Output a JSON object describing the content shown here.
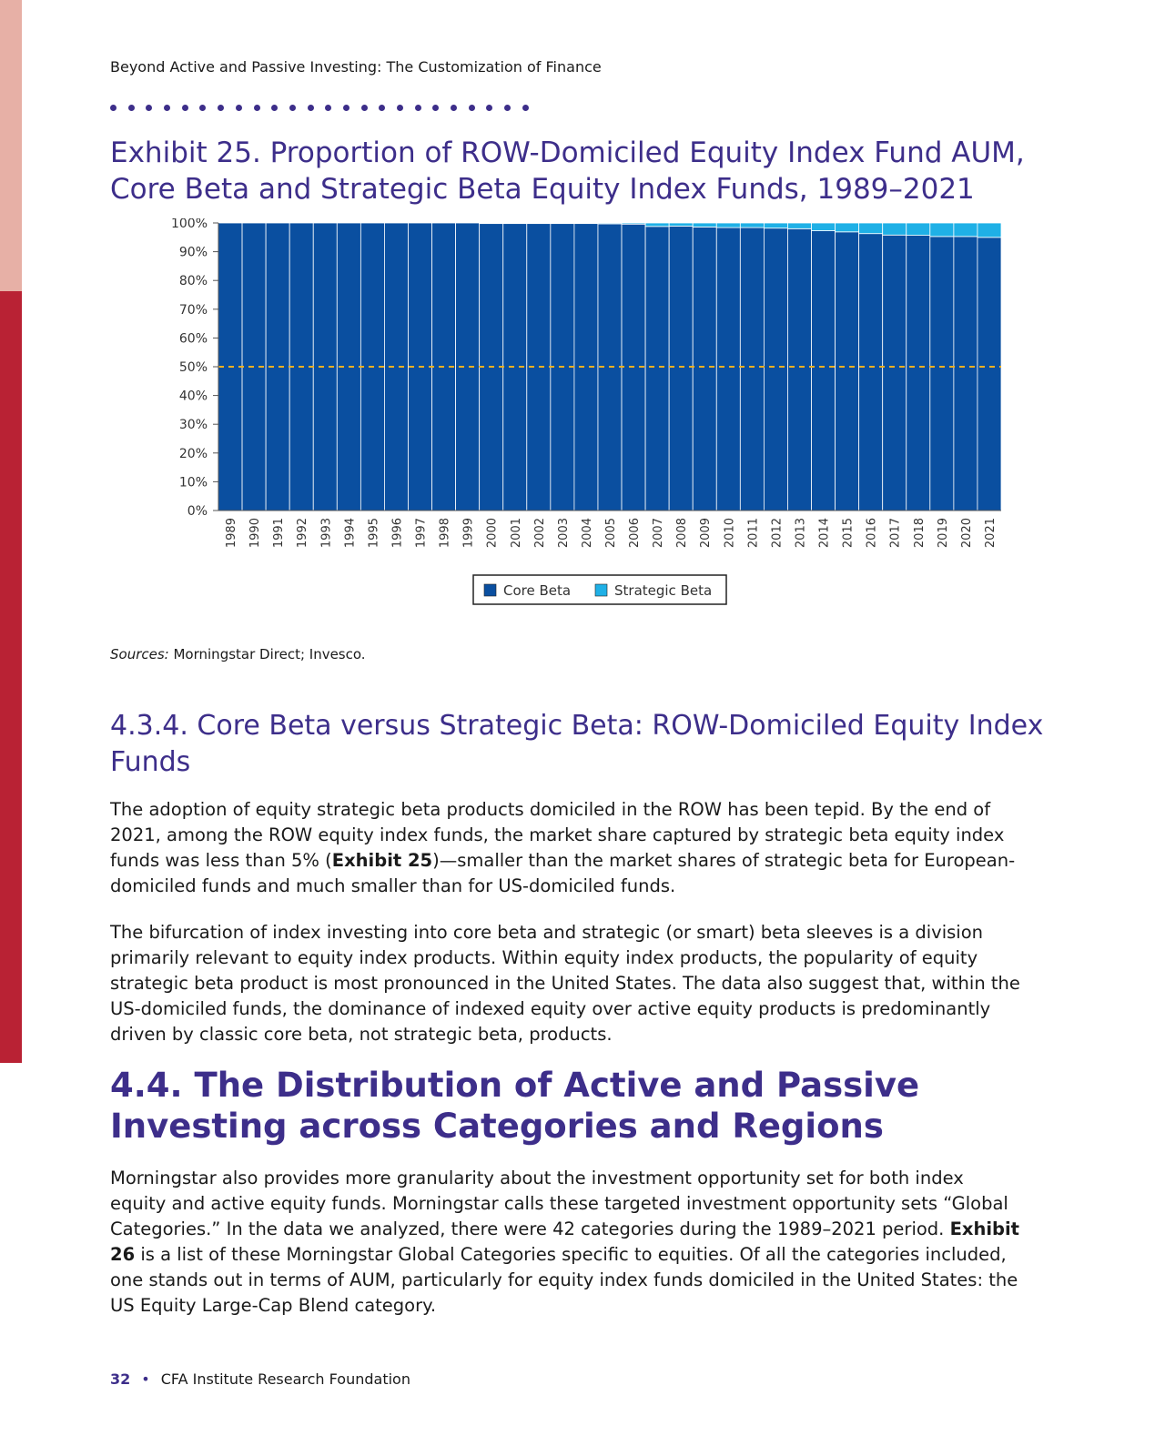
{
  "running_head": "Beyond Active and Passive Investing: The Customization of Finance",
  "exhibit_title": "Exhibit 25. Proportion of ROW-Domiciled Equity Index Fund AUM, Core Beta and Strategic Beta Equity Index Funds, 1989–2021",
  "chart_data": {
    "type": "bar",
    "stacked": true,
    "categories": [
      "1989",
      "1990",
      "1991",
      "1992",
      "1993",
      "1994",
      "1995",
      "1996",
      "1997",
      "1998",
      "1999",
      "2000",
      "2001",
      "2002",
      "2003",
      "2004",
      "2005",
      "2006",
      "2007",
      "2008",
      "2009",
      "2010",
      "2011",
      "2012",
      "2013",
      "2014",
      "2015",
      "2016",
      "2017",
      "2018",
      "2019",
      "2020",
      "2021"
    ],
    "series": [
      {
        "name": "Core Beta",
        "color": "#0a4fa0",
        "values": [
          100,
          100,
          100,
          100,
          100,
          100,
          100,
          100,
          100,
          100,
          100,
          99.8,
          99.8,
          99.8,
          99.8,
          99.8,
          99.7,
          99.6,
          98.8,
          98.9,
          98.6,
          98.4,
          98.4,
          98.2,
          98.0,
          97.3,
          96.9,
          96.3,
          95.8,
          95.7,
          95.3,
          95.3,
          95.0
        ]
      },
      {
        "name": "Strategic Beta",
        "color": "#1fb0e6",
        "values": [
          0,
          0,
          0,
          0,
          0,
          0,
          0,
          0,
          0,
          0,
          0,
          0.2,
          0.2,
          0.2,
          0.2,
          0.2,
          0.3,
          0.4,
          1.2,
          1.1,
          1.4,
          1.6,
          1.6,
          1.8,
          2.0,
          2.7,
          3.1,
          3.7,
          4.2,
          4.3,
          4.7,
          4.7,
          5.0
        ]
      }
    ],
    "y_tick_labels": [
      "0%",
      "10%",
      "20%",
      "30%",
      "40%",
      "50%",
      "60%",
      "70%",
      "80%",
      "90%",
      "100%"
    ],
    "ylim": [
      0,
      100
    ],
    "reference_line": {
      "y": 50,
      "color": "#f0b020",
      "style": "dashed"
    },
    "legend_position": "bottom-center",
    "grid": false
  },
  "sources": {
    "label": "Sources:",
    "text": " Morningstar Direct; Invesco."
  },
  "section_434_title": "4.3.4. Core Beta versus Strategic Beta: ROW-Domiciled Equity Index Funds",
  "p1": {
    "a": "The adoption of equity strategic beta products domiciled in the ROW has been tepid. By the end of 2021, among the ROW equity index funds, the market share captured by strategic beta equity index funds was less than 5% (",
    "bold": "Exhibit 25",
    "b": ")—smaller than the market shares of strategic beta for European-domiciled funds and much smaller than for US-domiciled funds."
  },
  "p2": "The bifurcation of index investing into core beta and strategic (or smart) beta sleeves is a division primarily relevant to equity index products. Within equity index products, the popularity of equity strategic beta product is most pronounced in the United States. The data also suggest that, within the US-domiciled funds, the dominance of indexed equity over active equity products is predominantly driven by classic core beta, not strategic beta, products.",
  "section_44_title": "4.4. The Distribution of Active and Passive Investing across Categories and Regions",
  "p3": {
    "a": "Morningstar also provides more granularity about the investment opportunity set for both index equity and active equity funds. Morningstar calls these targeted investment opportunity sets “Global Categories.” In the data we analyzed, there were 42 categories during the 1989–2021 period. ",
    "bold": "Exhibit 26",
    "b": " is a list of these Morningstar Global Categories specific to equities. Of all the categories included, one stands out in terms of AUM, particularly for equity index funds domiciled in the United States: the US Equity Large-Cap Blend category."
  },
  "footer": {
    "page_number": "32",
    "separator": "•",
    "org": "CFA Institute Research Foundation"
  }
}
